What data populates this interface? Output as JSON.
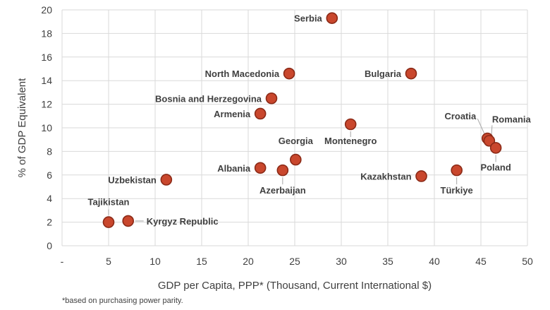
{
  "chart_data": {
    "type": "scatter",
    "xlabel": "GDP per Capita, PPP* (Thousand, Current International $)",
    "ylabel": "% of GDP Equivalent",
    "xlim": [
      0,
      50
    ],
    "ylim": [
      0,
      20
    ],
    "xticks": [
      "-",
      "5",
      "10",
      "15",
      "20",
      "25",
      "30",
      "35",
      "40",
      "45",
      "50"
    ],
    "yticks": [
      "0",
      "2",
      "4",
      "6",
      "8",
      "10",
      "12",
      "14",
      "16",
      "18",
      "20"
    ],
    "grid": true,
    "marker_color": "#c9472d",
    "points": [
      {
        "label": "Serbia",
        "x": 29.0,
        "y": 19.3
      },
      {
        "label": "North Macedonia",
        "x": 24.4,
        "y": 14.6
      },
      {
        "label": "Bulgaria",
        "x": 37.5,
        "y": 14.6
      },
      {
        "label": "Bosnia and Herzegovina",
        "x": 22.5,
        "y": 12.5
      },
      {
        "label": "Armenia",
        "x": 21.3,
        "y": 11.2
      },
      {
        "label": "Montenegro",
        "x": 31.0,
        "y": 10.3
      },
      {
        "label": "Croatia",
        "x": 45.7,
        "y": 9.1
      },
      {
        "label": "Romania",
        "x": 45.9,
        "y": 8.9
      },
      {
        "label": "Poland",
        "x": 46.6,
        "y": 8.3
      },
      {
        "label": "Georgia",
        "x": 25.1,
        "y": 7.3
      },
      {
        "label": "Albania",
        "x": 21.3,
        "y": 6.6
      },
      {
        "label": "Azerbaijan",
        "x": 23.7,
        "y": 6.4
      },
      {
        "label": "Kazakhstan",
        "x": 38.6,
        "y": 5.9
      },
      {
        "label": "Türkiye",
        "x": 42.4,
        "y": 6.4
      },
      {
        "label": "Uzbekistan",
        "x": 11.2,
        "y": 5.6
      },
      {
        "label": "Tajikistan",
        "x": 5.0,
        "y": 2.0
      },
      {
        "label": "Kyrgyz Republic",
        "x": 7.1,
        "y": 2.1
      }
    ]
  },
  "footnote": "*based on purchasing power parity."
}
